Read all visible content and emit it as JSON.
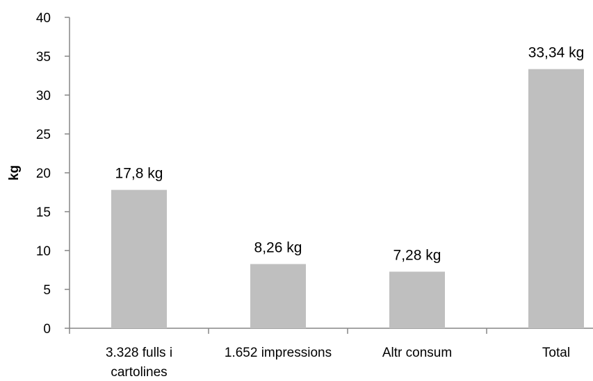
{
  "chart_data": {
    "type": "bar",
    "title": "",
    "xlabel": "",
    "ylabel": "kg",
    "ylim": [
      0,
      40
    ],
    "yticks": [
      "0",
      "5",
      "10",
      "15",
      "20",
      "25",
      "30",
      "35",
      "40"
    ],
    "categories": [
      [
        "3.328 fulls i",
        "cartolines"
      ],
      [
        "1.652 impressions"
      ],
      [
        "Altr consum"
      ],
      [
        "Total"
      ]
    ],
    "values": [
      17.8,
      8.26,
      7.28,
      33.34
    ],
    "data_labels": [
      "17,8 kg",
      "8,26 kg",
      "7,28 kg",
      "33,34 kg"
    ],
    "grid": false,
    "legend": "none",
    "bar_color": "#bfbfbf",
    "axis_color": "#868686"
  }
}
